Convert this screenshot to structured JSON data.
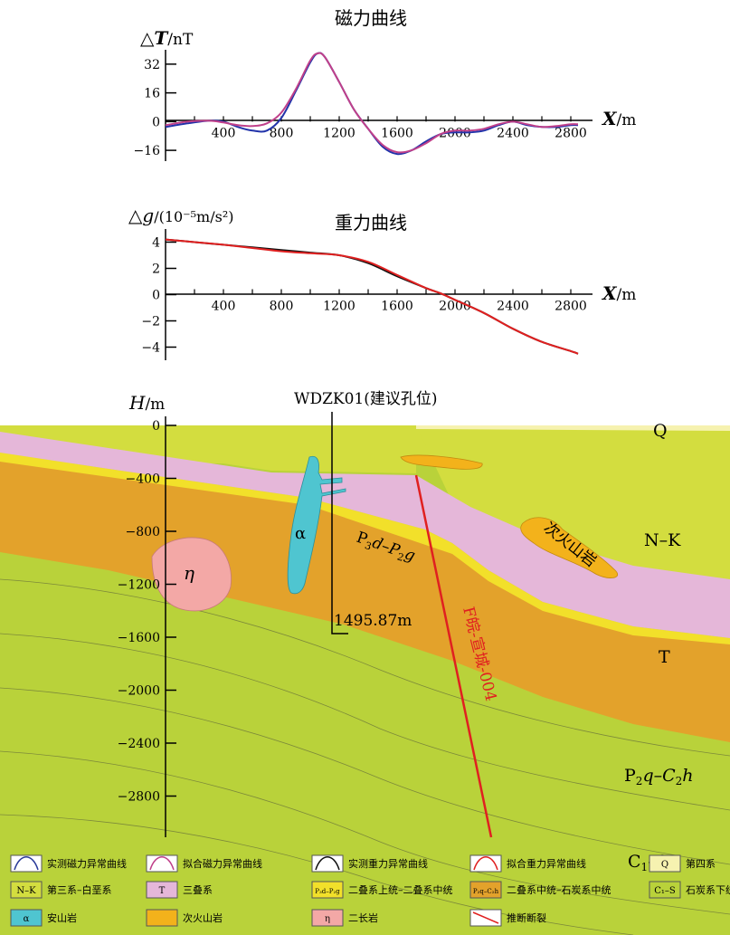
{
  "chart_data": [
    {
      "type": "line",
      "title": "磁力曲线",
      "ylabel_symbol": "△T",
      "ylabel_unit": "/nT",
      "xlabel_symbol": "X",
      "xlabel_unit": "/m",
      "y_ticks": [
        "32",
        "16",
        "0",
        "−16"
      ],
      "x_ticks": [
        "400",
        "800",
        "1200",
        "1600",
        "2000",
        "2400",
        "2800"
      ],
      "xlim": [
        0,
        2950
      ],
      "ylim": [
        -22,
        40
      ],
      "series": [
        {
          "key": "measured",
          "color": "#2233aa",
          "x": [
            0,
            150,
            300,
            400,
            500,
            600,
            700,
            800,
            900,
            1000,
            1050,
            1100,
            1200,
            1300,
            1400,
            1500,
            1600,
            1700,
            1800,
            1900,
            2000,
            2100,
            2200,
            2300,
            2400,
            2500,
            2600,
            2700,
            2800,
            2850
          ],
          "y": [
            -3,
            -1,
            0.5,
            0,
            -3,
            -5,
            -5,
            2,
            17,
            33,
            38,
            36,
            22,
            7,
            -4,
            -14,
            -18,
            -16,
            -11,
            -7,
            -6,
            -6,
            -5,
            -2,
            0,
            -2,
            -3,
            -3,
            -2,
            -2
          ]
        },
        {
          "key": "fitted",
          "color": "#c0408a",
          "x": [
            0,
            150,
            300,
            400,
            500,
            600,
            700,
            800,
            900,
            1000,
            1050,
            1100,
            1200,
            1300,
            1400,
            1500,
            1600,
            1700,
            1800,
            1900,
            2000,
            2100,
            2200,
            2300,
            2400,
            2500,
            2600,
            2700,
            2800,
            2850
          ],
          "y": [
            -2,
            0,
            0.5,
            -0.5,
            -2,
            -2.5,
            -1,
            5,
            18,
            34,
            38,
            36,
            22,
            7,
            -4,
            -13,
            -17,
            -16,
            -12,
            -7,
            -5,
            -5,
            -4,
            -1.5,
            0,
            -1.5,
            -3,
            -2.5,
            -1.5,
            -1.5
          ]
        }
      ]
    },
    {
      "type": "line",
      "title": "重力曲线",
      "ylabel_symbol": "△g",
      "ylabel_unit": "/(10⁻⁵m/s²)",
      "xlabel_symbol": "X",
      "xlabel_unit": "/m",
      "y_ticks": [
        "4",
        "2",
        "0",
        "−2",
        "−4"
      ],
      "x_ticks": [
        "400",
        "800",
        "1200",
        "1600",
        "2000",
        "2400",
        "2800"
      ],
      "xlim": [
        0,
        2950
      ],
      "ylim": [
        -5,
        5
      ],
      "series": [
        {
          "key": "measured",
          "color": "#111111",
          "x": [
            0,
            200,
            400,
            600,
            800,
            1000,
            1200,
            1400,
            1600,
            1800,
            1900,
            2000,
            2200,
            2400,
            2600,
            2800,
            2850
          ],
          "y": [
            4.2,
            4.0,
            3.8,
            3.6,
            3.4,
            3.2,
            3.0,
            2.4,
            1.4,
            0.5,
            0.1,
            -0.4,
            -1.4,
            -2.6,
            -3.6,
            -4.3,
            -4.5
          ]
        },
        {
          "key": "fitted",
          "color": "#e02020",
          "x": [
            0,
            200,
            400,
            600,
            800,
            1000,
            1200,
            1400,
            1600,
            1800,
            1900,
            2000,
            2200,
            2400,
            2600,
            2800,
            2850
          ],
          "y": [
            4.2,
            4.0,
            3.8,
            3.55,
            3.3,
            3.15,
            3.0,
            2.5,
            1.5,
            0.5,
            0.1,
            -0.4,
            -1.4,
            -2.6,
            -3.6,
            -4.3,
            -4.5
          ]
        }
      ]
    },
    {
      "type": "section",
      "ylabel_symbol": "H",
      "ylabel_unit": "/m",
      "y_ticks": [
        "0",
        "−400",
        "−800",
        "−1200",
        "−1600",
        "−2000",
        "−2400",
        "−2800"
      ],
      "well_label": "WDZK01(建议孔位)",
      "depth_label": "1495.87m",
      "fault_label": "F皖-宣城-004",
      "unit_labels": {
        "Q": "Q",
        "NK": "N–K",
        "T": "T",
        "P2q_base": "P",
        "P2q_sub1": "2",
        "P2q_mid": "q–C",
        "P2q_sub2": "2",
        "P2q_end": "h",
        "C1_base": "C",
        "C1_sub": "1",
        "C1_end": "–S",
        "P3d_base": "P",
        "P3d_sub1": "3",
        "P3d_mid": "d–P",
        "P3d_sub2": "2",
        "P3d_end": "g",
        "eta": "η",
        "alpha": "α",
        "subvolcanic": "次火山岩"
      }
    }
  ],
  "legend": {
    "rows": [
      [
        {
          "kind": "curve",
          "color": "#2a3a99",
          "label": "实测磁力异常曲线"
        },
        {
          "kind": "curve",
          "color": "#c0408a",
          "label": "拟合磁力异常曲线"
        },
        {
          "kind": "curve",
          "color": "#111111",
          "label": "实测重力异常曲线"
        },
        {
          "kind": "curve",
          "color": "#e02020",
          "label": "拟合重力异常曲线"
        },
        {
          "kind": "swatch",
          "color": "#f6f2b0",
          "code": "Q",
          "label": "第四系"
        }
      ],
      [
        {
          "kind": "swatch",
          "color": "#d3dd3f",
          "code": "N–K",
          "label": "第三系–白垩系"
        },
        {
          "kind": "swatch",
          "color": "#e5b7d9",
          "code": "T",
          "label": "三叠系"
        },
        {
          "kind": "swatch",
          "color": "#f2e02a",
          "code": "P₃d–P₂g",
          "label": "二叠系上统–二叠系中统"
        },
        {
          "kind": "swatch",
          "color": "#e3a22b",
          "code": "P₂q–C₂h",
          "label": "二叠系中统–石炭系中统"
        },
        {
          "kind": "swatch",
          "color": "#b9d23a",
          "code": "C₁–S",
          "label": "石炭系下统–志留系"
        }
      ],
      [
        {
          "kind": "swatch",
          "color": "#4fc5d0",
          "code": "α",
          "label": "安山岩"
        },
        {
          "kind": "swatch",
          "color": "#f3b21b",
          "code": "",
          "label": "次火山岩"
        },
        {
          "kind": "swatch",
          "color": "#f3a8a6",
          "code": "η",
          "label": "二长岩"
        },
        {
          "kind": "fault",
          "color": "#e02020",
          "label": "推断断裂"
        }
      ]
    ]
  },
  "colors": {
    "NK": "#d3dd3f",
    "Q": "#f6f2b0",
    "T": "#e5b7d9",
    "P3": "#f2e02a",
    "P2q": "#e3a22b",
    "C1": "#b9d23a",
    "alpha": "#4fc5d0",
    "subvolc": "#f3b21b",
    "eta": "#f3a8a6",
    "fault": "#e02020"
  }
}
